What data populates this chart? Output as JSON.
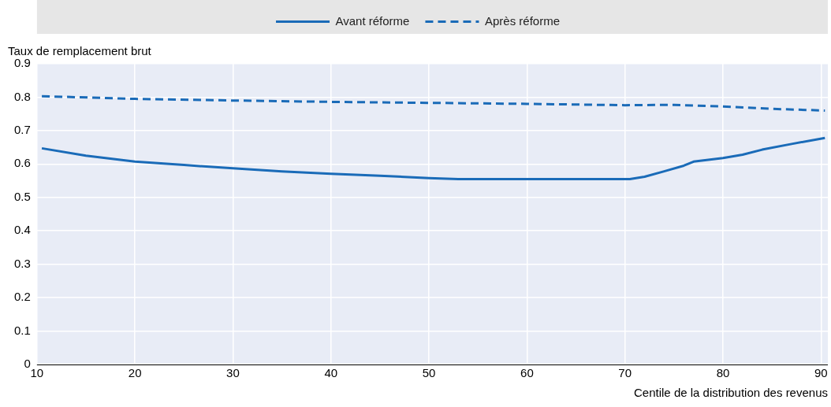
{
  "chart_data": {
    "type": "line",
    "xlabel": "Centile de la distribution des revenus",
    "ylabel": "Taux de remplacement brut",
    "xlim": [
      10,
      90.7
    ],
    "xticks": [
      10,
      20,
      30,
      40,
      50,
      60,
      70,
      80,
      90
    ],
    "ylim": [
      0,
      0.9
    ],
    "yticks": [
      0,
      0.1,
      0.2,
      0.3,
      0.4,
      0.5,
      0.6,
      0.7,
      0.8,
      0.9
    ],
    "grid": true,
    "legend": "top",
    "marker": "none",
    "series": [
      {
        "name": "Avant réforme",
        "color": "#1a6bb8",
        "line_style": "solid",
        "x": [
          10.5,
          15,
          20,
          25,
          30,
          35,
          40,
          45,
          50,
          53,
          60,
          70.5,
          72,
          74,
          76,
          77,
          80,
          82,
          84,
          87,
          90.4
        ],
        "values": [
          0.647,
          0.625,
          0.607,
          0.597,
          0.587,
          0.578,
          0.571,
          0.565,
          0.558,
          0.555,
          0.555,
          0.555,
          0.562,
          0.578,
          0.595,
          0.607,
          0.618,
          0.628,
          0.643,
          0.66,
          0.678
        ]
      },
      {
        "name": "Après réforme",
        "color": "#1a6bb8",
        "line_style": "dashed",
        "x": [
          10.5,
          20,
          30,
          40,
          50,
          60,
          70,
          75,
          80,
          85,
          90.4
        ],
        "values": [
          0.803,
          0.795,
          0.79,
          0.786,
          0.783,
          0.78,
          0.776,
          0.777,
          0.772,
          0.765,
          0.76
        ]
      }
    ]
  }
}
